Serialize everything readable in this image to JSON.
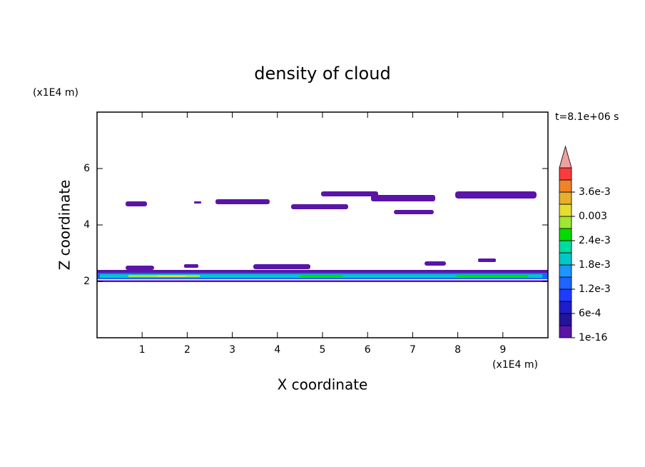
{
  "chart_data": {
    "type": "contour",
    "title": "density of cloud",
    "x_label": "X coordinate",
    "y_label": "Z coordinate",
    "x_unit": "(x1E4 m)",
    "y_unit": "(x1E4 m)",
    "time_label": "t=8.1e+06 s",
    "xlim": [
      0,
      10
    ],
    "ylim": [
      0,
      8
    ],
    "xticks": [
      1,
      2,
      3,
      4,
      5,
      6,
      7,
      8,
      9
    ],
    "yticks": [
      2,
      4,
      6
    ],
    "colorbar": {
      "colors": [
        "#5a14a8",
        "#23149b",
        "#1e1ec8",
        "#1e3cff",
        "#1e64ff",
        "#1e96ff",
        "#00c8c8",
        "#00dca0",
        "#00dc00",
        "#a0e632",
        "#e6dc32",
        "#e6af2d",
        "#f08228",
        "#fa3c3c"
      ],
      "over_color": "#f0a0a0",
      "ticks": [
        {
          "value": 1e-16,
          "label": "1e-16"
        },
        {
          "value": 0.0006,
          "label": "6e-4"
        },
        {
          "value": 0.0012,
          "label": "1.2e-3"
        },
        {
          "value": 0.0018,
          "label": "1.8e-3"
        },
        {
          "value": 0.0024,
          "label": "2.4e-3"
        },
        0.003,
        {
          "value": 0.0036,
          "label": "3.6e-3"
        }
      ]
    }
  }
}
